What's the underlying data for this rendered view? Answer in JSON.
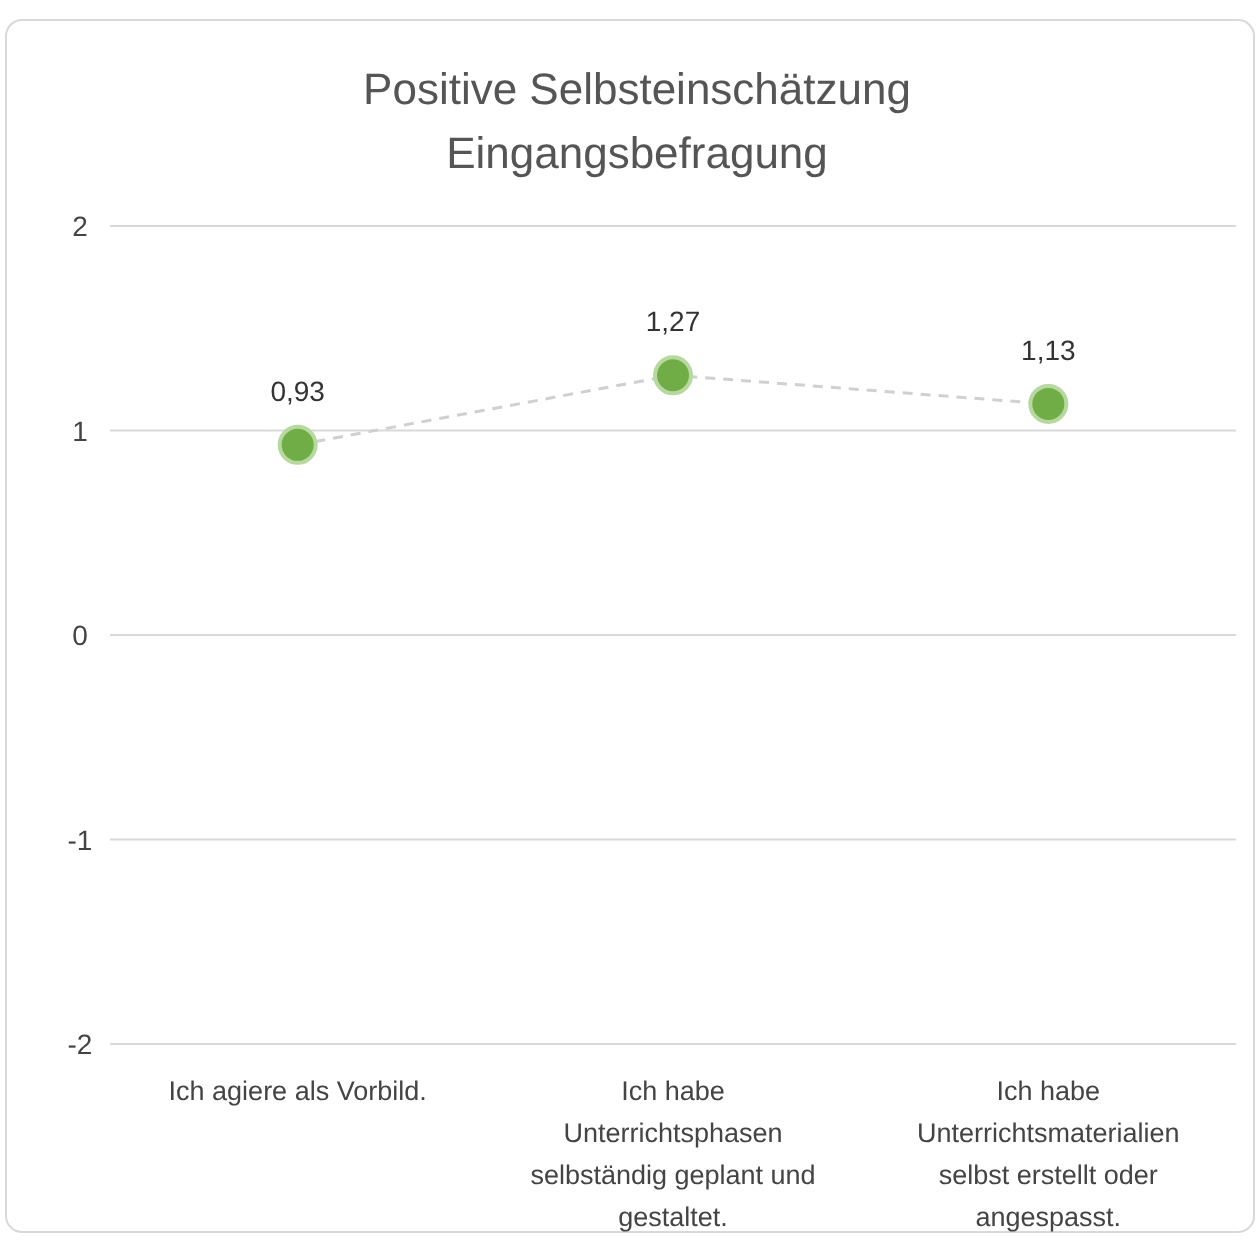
{
  "chart_data": {
    "type": "line",
    "title": "Positive Selbsteinschätzung\nEingangsbefragung",
    "categories": [
      "Ich agiere als Vorbild.",
      "Ich habe Unterrichtsphasen selbständig geplant und gestaltet.",
      "Ich habe Unterrichtsmaterialien selbst erstellt oder angespasst."
    ],
    "series": [
      {
        "color": "#70ad47",
        "values": [
          0.93,
          1.27,
          1.13
        ],
        "value_labels": [
          "0,93",
          "1,27",
          "1,13"
        ]
      }
    ],
    "ylim": [
      -2,
      2
    ],
    "yticks": [
      -2,
      -1,
      0,
      1,
      2
    ],
    "grid": "y",
    "marker": "circle",
    "line_style": "dashed"
  }
}
